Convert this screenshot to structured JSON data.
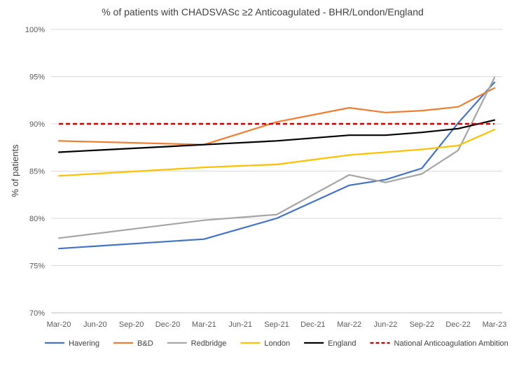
{
  "chart_data": {
    "type": "line",
    "title": "% of patients with CHADSVASc ≥2 Anticoagulated - BHR/London/England",
    "xlabel": "",
    "ylabel": "% of patients",
    "ylim": [
      70,
      100
    ],
    "yticks": [
      70,
      75,
      80,
      85,
      90,
      95,
      100
    ],
    "ytick_labels": [
      "70%",
      "75%",
      "80%",
      "85%",
      "90%",
      "95%",
      "100%"
    ],
    "x": [
      "Mar-20",
      "Jun-20",
      "Sep-20",
      "Dec-20",
      "Mar-21",
      "Jun-21",
      "Sep-21",
      "Dec-21",
      "Mar-22",
      "Jun-22",
      "Sep-22",
      "Dec-22",
      "Mar-23"
    ],
    "grid": true,
    "legend_position": "bottom",
    "series": [
      {
        "name": "Havering",
        "color": "#4472C4",
        "dashed": false,
        "points": [
          [
            0,
            76.8
          ],
          [
            4,
            77.8
          ],
          [
            6,
            80.0
          ],
          [
            8,
            83.5
          ],
          [
            9,
            84.1
          ],
          [
            10,
            85.3
          ],
          [
            11,
            90.1
          ],
          [
            12,
            94.4
          ]
        ]
      },
      {
        "name": "B&D",
        "color": "#ED7D31",
        "dashed": false,
        "points": [
          [
            0,
            88.2
          ],
          [
            4,
            87.8
          ],
          [
            6,
            90.2
          ],
          [
            8,
            91.7
          ],
          [
            9,
            91.2
          ],
          [
            10,
            91.4
          ],
          [
            11,
            91.8
          ],
          [
            12,
            93.8
          ]
        ]
      },
      {
        "name": "Redbridge",
        "color": "#A5A5A5",
        "dashed": false,
        "points": [
          [
            0,
            77.9
          ],
          [
            4,
            79.8
          ],
          [
            6,
            80.4
          ],
          [
            8,
            84.6
          ],
          [
            9,
            83.8
          ],
          [
            10,
            84.7
          ],
          [
            11,
            87.2
          ],
          [
            12,
            94.9
          ]
        ]
      },
      {
        "name": "London",
        "color": "#FFC000",
        "dashed": false,
        "points": [
          [
            0,
            84.5
          ],
          [
            4,
            85.4
          ],
          [
            6,
            85.7
          ],
          [
            8,
            86.7
          ],
          [
            9,
            87.0
          ],
          [
            10,
            87.3
          ],
          [
            11,
            87.7
          ],
          [
            12,
            89.4
          ]
        ]
      },
      {
        "name": "England",
        "color": "#000000",
        "dashed": false,
        "points": [
          [
            0,
            87.0
          ],
          [
            4,
            87.8
          ],
          [
            6,
            88.2
          ],
          [
            8,
            88.8
          ],
          [
            9,
            88.8
          ],
          [
            10,
            89.1
          ],
          [
            11,
            89.5
          ],
          [
            12,
            90.4
          ]
        ]
      },
      {
        "name": "National Anticoagulation Ambition",
        "color": "#C00000",
        "dashed": true,
        "points": [
          [
            0,
            90.0
          ],
          [
            12,
            90.0
          ]
        ]
      }
    ]
  }
}
